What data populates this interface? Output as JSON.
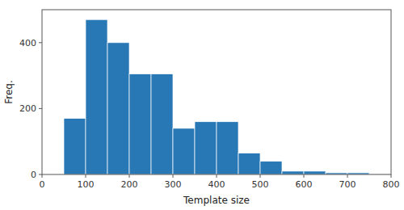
{
  "chart_data": {
    "type": "histogram",
    "bins": [
      50,
      100,
      150,
      200,
      250,
      300,
      350,
      400,
      450,
      500,
      550,
      600,
      650,
      700,
      750,
      800
    ],
    "values": [
      170,
      470,
      400,
      305,
      305,
      140,
      160,
      160,
      65,
      40,
      10,
      10,
      5,
      5,
      2
    ],
    "color": "#2878b5",
    "xlabel": "Template size",
    "ylabel": "Freq.",
    "xlim": [
      0,
      800
    ],
    "ylim": [
      0,
      500
    ],
    "xticks": [
      0,
      100,
      200,
      300,
      400,
      500,
      600,
      700,
      800
    ],
    "yticks": [
      0,
      200,
      400
    ],
    "grid": false
  }
}
